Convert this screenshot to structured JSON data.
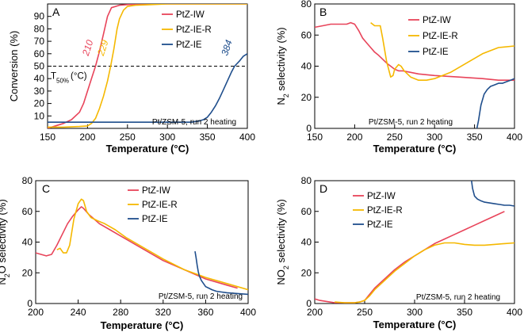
{
  "colors": {
    "PtZ-IW": "#e8445a",
    "PtZ-IE-R": "#f5b800",
    "PtZ-IE": "#1f4e8c"
  },
  "chart_data": [
    {
      "panel": "A",
      "type": "line",
      "ylabel": "Conversion (%)",
      "xlabel": "Temperature (°C)",
      "xlim": [
        150,
        400
      ],
      "ylim": [
        0,
        100
      ],
      "xticks": [
        150,
        200,
        250,
        300,
        350,
        400
      ],
      "yticks": [
        10,
        20,
        30,
        40,
        50,
        60,
        70,
        80,
        90
      ],
      "note": "Pt/ZSM-5, run 2 heating",
      "legend_position": "top-right",
      "t50_line": 50,
      "t50_label": "T50% (°C)",
      "annotations": [
        {
          "text": "210",
          "series": "PtZ-IW",
          "x": 210,
          "y": 64
        },
        {
          "text": "229",
          "series": "PtZ-IE-R",
          "x": 229,
          "y": 64
        },
        {
          "text": "384",
          "series": "PtZ-IE",
          "x": 384,
          "y": 64
        }
      ],
      "series": [
        {
          "name": "PtZ-IW",
          "x": [
            150,
            170,
            180,
            190,
            195,
            200,
            205,
            210,
            215,
            220,
            225,
            230,
            240,
            250,
            270,
            300,
            350,
            400
          ],
          "y": [
            0,
            4,
            7,
            13,
            20,
            30,
            40,
            50,
            62,
            76,
            90,
            97,
            99,
            99.5,
            100,
            100,
            100,
            100
          ]
        },
        {
          "name": "PtZ-IE-R",
          "x": [
            150,
            170,
            190,
            200,
            205,
            210,
            215,
            220,
            225,
            229,
            233,
            237,
            240,
            245,
            250,
            260,
            280,
            300,
            350,
            400
          ],
          "y": [
            1,
            1,
            1.5,
            2,
            4,
            8,
            16,
            26,
            38,
            50,
            64,
            80,
            88,
            95,
            98,
            99,
            99.5,
            100,
            100,
            100
          ]
        },
        {
          "name": "PtZ-IE",
          "x": [
            150,
            200,
            250,
            300,
            320,
            330,
            340,
            345,
            350,
            355,
            360,
            365,
            370,
            375,
            380,
            384,
            390,
            395,
            400
          ],
          "y": [
            5,
            5,
            5,
            5,
            5,
            5,
            6,
            7,
            9,
            13,
            18,
            24,
            31,
            38,
            45,
            50,
            54,
            58,
            60
          ]
        }
      ]
    },
    {
      "panel": "B",
      "type": "line",
      "ylabel": "N2 selectivity (%)",
      "xlabel": "Temperature (°C)",
      "xlim": [
        150,
        400
      ],
      "ylim": [
        0,
        80
      ],
      "xticks": [
        150,
        200,
        250,
        300,
        350,
        400
      ],
      "yticks": [
        0,
        20,
        40,
        60,
        80
      ],
      "note": "Pt/ZSM-5, run 2 heating",
      "legend_position": "top-right",
      "series": [
        {
          "name": "PtZ-IW",
          "x": [
            150,
            160,
            170,
            180,
            190,
            195,
            200,
            205,
            210,
            215,
            220,
            225,
            230,
            240,
            245,
            250,
            255,
            260,
            270,
            280,
            300,
            330,
            360,
            380,
            400
          ],
          "y": [
            65,
            66,
            67,
            67,
            67,
            68,
            67,
            63,
            58,
            55,
            52,
            49,
            47,
            42,
            40,
            38,
            37,
            37,
            36,
            35,
            34,
            33,
            32,
            31,
            31
          ]
        },
        {
          "name": "PtZ-IE-R",
          "x": [
            220,
            225,
            230,
            232,
            235,
            240,
            245,
            248,
            250,
            255,
            258,
            262,
            270,
            280,
            290,
            300,
            320,
            340,
            360,
            380,
            400
          ],
          "y": [
            68,
            66,
            66,
            66,
            58,
            43,
            33,
            34,
            38,
            41,
            40,
            37,
            33,
            31,
            31,
            32,
            36,
            42,
            48,
            52,
            53
          ]
        },
        {
          "name": "PtZ-IE",
          "x": [
            353,
            355,
            358,
            362,
            366,
            370,
            375,
            380,
            385,
            390,
            395,
            400
          ],
          "y": [
            0,
            5,
            15,
            22,
            25,
            27,
            28,
            29,
            29,
            30,
            31,
            32
          ]
        }
      ]
    },
    {
      "panel": "C",
      "type": "line",
      "ylabel": "N2O selectivity (%)",
      "xlabel": "Temperature (°C)",
      "xlim": [
        200,
        400
      ],
      "ylim": [
        0,
        80
      ],
      "xticks": [
        200,
        240,
        280,
        320,
        360,
        400
      ],
      "yticks": [
        0,
        20,
        40,
        60,
        80
      ],
      "note": "Pt/ZSM-5, run 2 heating",
      "legend_position": "top-right",
      "series": [
        {
          "name": "PtZ-IW",
          "x": [
            200,
            205,
            210,
            215,
            220,
            225,
            230,
            235,
            240,
            243,
            245,
            250,
            255,
            260,
            270,
            280,
            300,
            320,
            340,
            360,
            380,
            390
          ],
          "y": [
            33,
            32,
            31,
            32,
            38,
            45,
            52,
            57,
            61,
            63,
            62,
            58,
            55,
            52,
            48,
            44,
            36,
            28,
            22,
            16,
            12,
            10
          ]
        },
        {
          "name": "PtZ-IE-R",
          "x": [
            220,
            223,
            226,
            229,
            232,
            236,
            240,
            243,
            245,
            248,
            252,
            258,
            265,
            275,
            285,
            300,
            320,
            340,
            360,
            380,
            400
          ],
          "y": [
            35,
            36,
            33,
            33,
            38,
            55,
            65,
            68,
            67,
            60,
            56,
            54,
            52,
            48,
            43,
            37,
            29,
            22,
            17,
            13,
            9
          ]
        },
        {
          "name": "PtZ-IE",
          "x": [
            350,
            351,
            352,
            353,
            354,
            356,
            358,
            360,
            363,
            366,
            370,
            375,
            380,
            390,
            400
          ],
          "y": [
            34,
            30,
            25,
            21,
            18,
            15,
            13,
            11,
            10,
            9,
            8,
            7.5,
            7,
            6.5,
            6
          ]
        }
      ]
    },
    {
      "panel": "D",
      "type": "line",
      "ylabel": "NO2 selectivity (%)",
      "xlabel": "Temperature (°C)",
      "xlim": [
        200,
        400
      ],
      "ylim": [
        0,
        80
      ],
      "xticks": [
        200,
        250,
        300,
        350,
        400
      ],
      "yticks": [
        0,
        20,
        40,
        60,
        80
      ],
      "note": "Pt/ZSM-5, run 2 heating",
      "legend_position": "top-right",
      "series": [
        {
          "name": "PtZ-IW",
          "x": [
            200,
            205,
            210,
            215,
            220,
            230,
            240,
            245,
            250,
            255,
            260,
            270,
            280,
            290,
            300,
            310,
            320,
            330,
            340,
            350,
            360,
            370,
            380,
            390
          ],
          "y": [
            3,
            2,
            1.5,
            1,
            0.5,
            0.5,
            0.5,
            1,
            2,
            6,
            10,
            16,
            22,
            27,
            31,
            35,
            39,
            42,
            45,
            48,
            51,
            54,
            57,
            60
          ]
        },
        {
          "name": "PtZ-IE-R",
          "x": [
            220,
            230,
            240,
            245,
            250,
            255,
            260,
            270,
            280,
            290,
            300,
            310,
            320,
            330,
            340,
            350,
            360,
            370,
            380,
            390,
            400
          ],
          "y": [
            1,
            0.5,
            0.5,
            1,
            2,
            5,
            9,
            15,
            21,
            26,
            31,
            35,
            38,
            39.5,
            39.5,
            38.5,
            38,
            38,
            38.5,
            39,
            39.5
          ]
        },
        {
          "name": "PtZ-IE",
          "x": [
            357,
            358,
            360,
            363,
            366,
            370,
            375,
            380,
            385,
            390,
            395,
            400
          ],
          "y": [
            80,
            75,
            70,
            68,
            67,
            66,
            65.5,
            65,
            64.5,
            64,
            64,
            63.5
          ]
        }
      ]
    }
  ]
}
